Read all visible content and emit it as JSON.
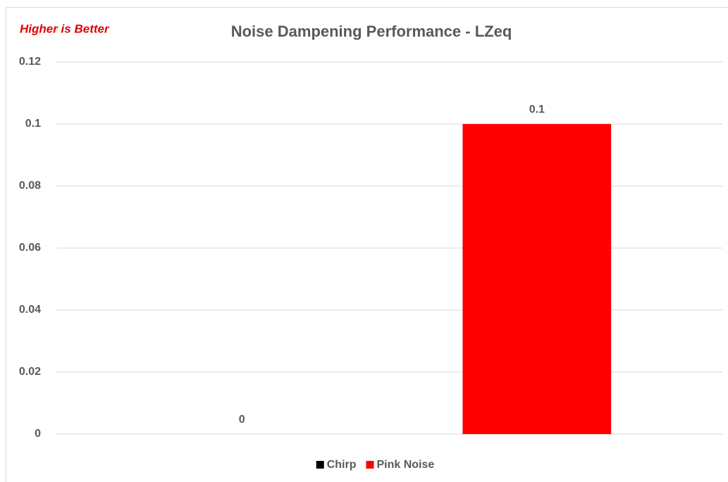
{
  "chart_data": {
    "type": "bar",
    "title": "Noise Dampening Performance - LZeq",
    "annotation": "Higher is Better",
    "categories": [
      null
    ],
    "series": [
      {
        "name": "Chirp",
        "color": "#000000",
        "values": [
          0
        ]
      },
      {
        "name": "Pink Noise",
        "color": "#ff0000",
        "values": [
          0.1
        ]
      }
    ],
    "ylim": [
      0,
      0.12
    ],
    "yticks": [
      0,
      0.02,
      0.04,
      0.06,
      0.08,
      0.1,
      0.12
    ],
    "grid": true,
    "legend": "bottom"
  }
}
